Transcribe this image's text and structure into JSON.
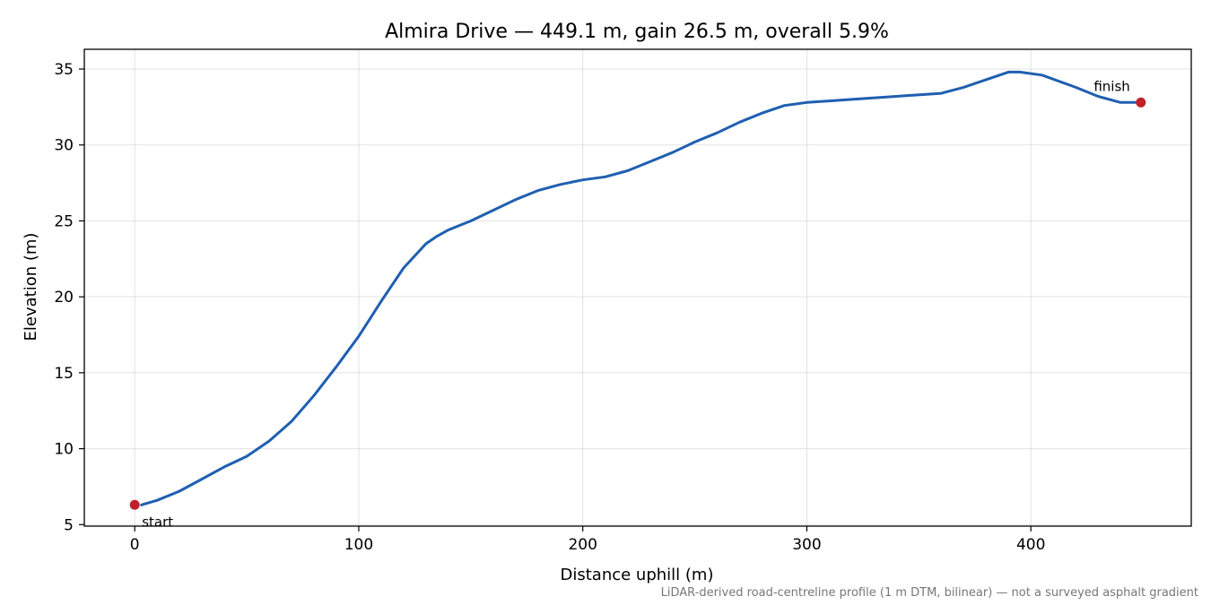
{
  "chart_data": {
    "type": "line",
    "title": "Almira Drive — 449.1 m, gain 26.5 m, overall 5.9%",
    "xlabel": "Distance uphill (m)",
    "ylabel": "Elevation (m)",
    "xlim": [
      -22.5,
      471.6
    ],
    "ylim": [
      4.9,
      36.3
    ],
    "xticks": [
      0,
      100,
      200,
      300,
      400
    ],
    "yticks": [
      5,
      10,
      15,
      20,
      25,
      30,
      35
    ],
    "grid": true,
    "series": [
      {
        "color": "#1f5fb0",
        "x": [
          3,
          10,
          20,
          30,
          40,
          50,
          60,
          70,
          80,
          90,
          100,
          110,
          120,
          130,
          135,
          140,
          150,
          160,
          170,
          180,
          190,
          200,
          210,
          220,
          230,
          240,
          250,
          260,
          270,
          280,
          290,
          300,
          310,
          320,
          340,
          360,
          370,
          380,
          390,
          395,
          405,
          420,
          430,
          440,
          449.1
        ],
        "y": [
          6.3,
          6.6,
          7.2,
          8.0,
          8.8,
          9.5,
          10.5,
          11.8,
          13.5,
          15.4,
          17.4,
          19.7,
          21.9,
          23.5,
          24.0,
          24.4,
          25.0,
          25.7,
          26.4,
          27.0,
          27.4,
          27.7,
          27.9,
          28.3,
          28.9,
          29.5,
          30.2,
          30.8,
          31.5,
          32.1,
          32.6,
          32.8,
          32.9,
          33.0,
          33.2,
          33.4,
          33.8,
          34.3,
          34.8,
          34.8,
          34.6,
          33.8,
          33.2,
          32.8,
          32.8
        ]
      },
      {
        "color": "#c0202a",
        "x": [
          0,
          449.1
        ],
        "y": [
          6.3,
          32.8
        ]
      }
    ],
    "annotations": [
      {
        "text": "start",
        "x": 0,
        "y": 6.3
      },
      {
        "text": "finish",
        "x": 449.1,
        "y": 32.8
      }
    ],
    "footnote": "LiDAR-derived road-centreline profile (1 m DTM, bilinear) — not a surveyed asphalt gradient"
  }
}
